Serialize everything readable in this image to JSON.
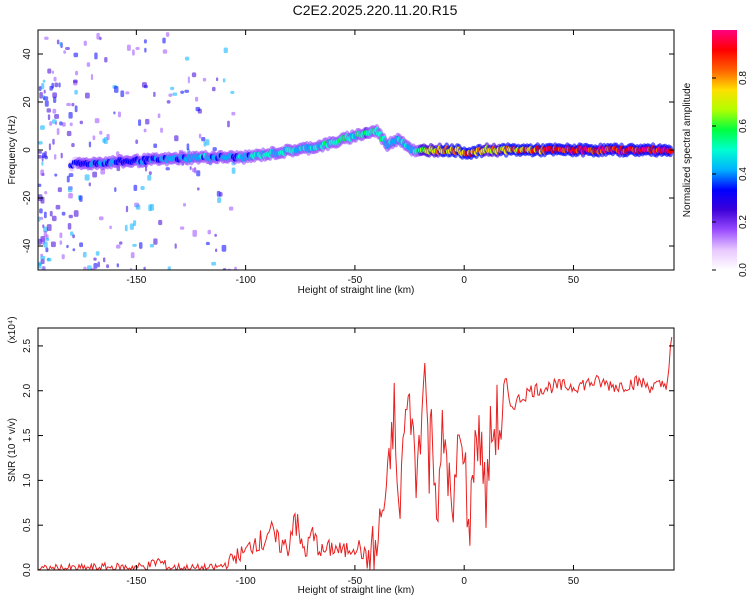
{
  "title": "C2E2.2025.220.11.20.R15",
  "colors": {
    "snr_line": "#e82020",
    "colormap": [
      "#ffffff",
      "#e8c8ff",
      "#9a4dff",
      "#3d00d8",
      "#0000ff",
      "#00b0ff",
      "#00ffd0",
      "#00ff40",
      "#b0ff00",
      "#ffe000",
      "#ff6000",
      "#ff0000",
      "#ff0080"
    ]
  },
  "spectrogram": {
    "xlabel": "Height of straight line (km)",
    "ylabel": "Frequency (Hz)",
    "xlim": [
      -195,
      96
    ],
    "ylim": [
      -50,
      50
    ],
    "xticks": [
      -150,
      -100,
      -50,
      0,
      50
    ],
    "yticks": [
      -40,
      -20,
      0,
      20,
      40
    ],
    "colorbar": {
      "label": "Normalized spectral amplitude",
      "range": [
        0,
        1
      ],
      "ticks": [
        "0.0",
        "0.2",
        "0.4",
        "0.6",
        "0.8"
      ]
    }
  },
  "chart_data": [
    {
      "type": "heatmap",
      "title": "C2E2.2025.220.11.20.R15",
      "xlabel": "Height of straight line (km)",
      "ylabel": "Frequency (Hz)",
      "xlim": [
        -195,
        96
      ],
      "ylim": [
        -50,
        50
      ],
      "ridge": {
        "description_points_x": [
          -180,
          -160,
          -140,
          -120,
          -100,
          -85,
          -70,
          -60,
          -50,
          -45,
          -40,
          -35,
          -30,
          -25,
          -22,
          -18,
          -10,
          -5,
          0,
          5,
          10,
          20,
          30,
          40,
          50,
          60,
          70,
          80,
          90,
          95
        ],
        "frequency_hz": [
          -6,
          -5,
          -4,
          -3,
          -3,
          -1,
          1,
          3,
          6,
          7,
          8,
          2,
          5,
          1,
          -1,
          0,
          0,
          0,
          -1,
          -1,
          0,
          0,
          0,
          0,
          0,
          0,
          0,
          0,
          0,
          0
        ],
        "amplitude": [
          0.35,
          0.4,
          0.4,
          0.45,
          0.45,
          0.5,
          0.5,
          0.55,
          0.55,
          0.6,
          0.55,
          0.5,
          0.5,
          0.45,
          0.5,
          0.7,
          0.85,
          0.9,
          0.85,
          0.9,
          0.8,
          0.85,
          0.9,
          0.95,
          1.0,
          1.0,
          1.0,
          1.0,
          1.0,
          1.0
        ]
      }
    },
    {
      "type": "line",
      "xlabel": "Height of straight line (km)",
      "ylabel": "SNR (10 * v/v)",
      "y_multiplier": "(x10⁴)",
      "xlim": [
        -195,
        96
      ],
      "ylim": [
        0,
        2.7
      ],
      "xticks": [
        -150,
        -100,
        -50,
        0,
        50
      ],
      "yticks": [
        "0.0",
        "0.5",
        "1.0",
        "1.5",
        "2.0",
        "2.5"
      ],
      "x": [
        -195,
        -185,
        -175,
        -165,
        -155,
        -145,
        -140,
        -135,
        -125,
        -115,
        -110,
        -105,
        -100,
        -95,
        -92,
        -90,
        -85,
        -80,
        -78,
        -75,
        -72,
        -70,
        -65,
        -60,
        -55,
        -50,
        -45,
        -40,
        -38,
        -35,
        -32,
        -30,
        -28,
        -25,
        -22,
        -20,
        -18,
        -16,
        -15,
        -12,
        -10,
        -8,
        -5,
        -3,
        -1,
        0,
        2,
        5,
        8,
        10,
        12,
        15,
        20,
        25,
        30,
        40,
        50,
        60,
        70,
        80,
        85,
        90,
        93,
        95
      ],
      "y": [
        0.01,
        0.02,
        0.02,
        0.03,
        0.03,
        0.04,
        0.1,
        0.03,
        0.02,
        0.02,
        0.05,
        0.15,
        0.2,
        0.35,
        0.3,
        0.45,
        0.3,
        0.25,
        0.7,
        0.3,
        0.2,
        0.4,
        0.2,
        0.25,
        0.2,
        0.3,
        0.15,
        0.2,
        0.6,
        0.9,
        1.8,
        0.5,
        1.4,
        2.0,
        1.0,
        1.6,
        2.3,
        1.1,
        1.8,
        0.5,
        1.5,
        1.3,
        0.4,
        1.5,
        1.2,
        1.5,
        0.3,
        1.5,
        1.4,
        0.7,
        1.5,
        1.6,
        1.8,
        1.9,
        2.0,
        2.05,
        2.05,
        2.1,
        2.05,
        2.1,
        2.05,
        2.05,
        2.1,
        2.6
      ]
    }
  ]
}
